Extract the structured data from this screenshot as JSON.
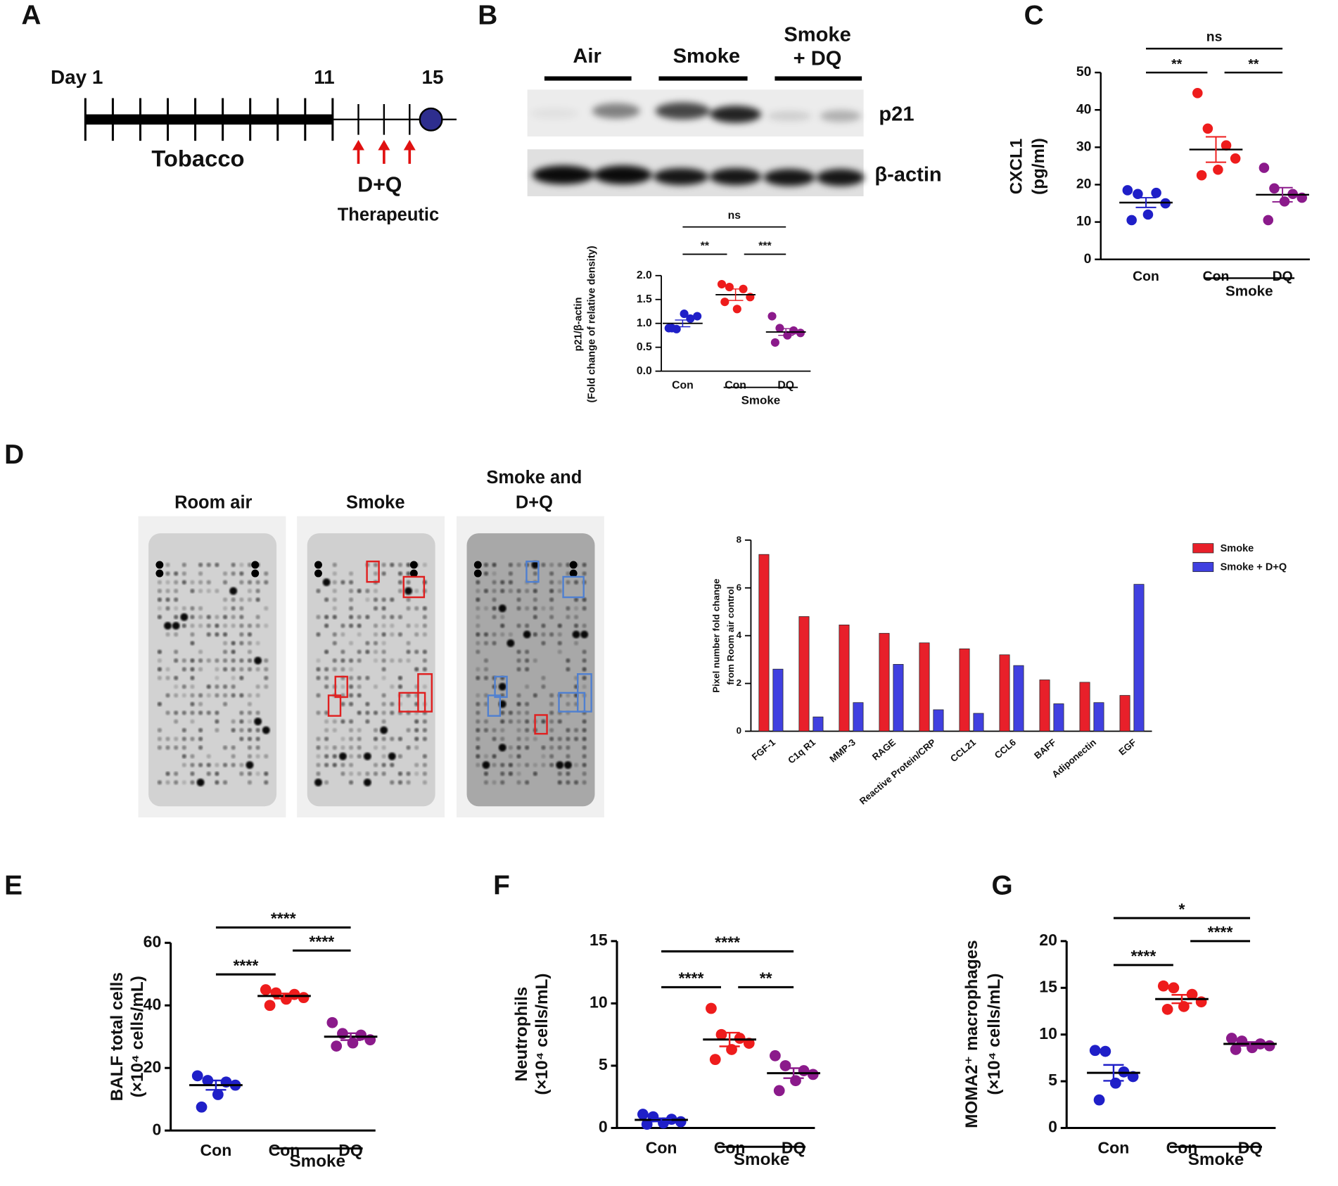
{
  "panel_labels": [
    "A",
    "B",
    "C",
    "D",
    "E",
    "F",
    "G"
  ],
  "timeline": {
    "start": "Day 1",
    "mid": "11",
    "end": "15",
    "exposure": "Tobacco",
    "treatment": "D+Q",
    "regimen": "Therapeutic"
  },
  "blot": {
    "groups": [
      [
        "Air"
      ],
      [
        "Smoke"
      ],
      [
        "Smoke",
        "+ DQ"
      ]
    ],
    "proteins": [
      "p21",
      "β-actin"
    ]
  },
  "array": {
    "conditions": [
      [
        "Room air"
      ],
      [
        "Smoke"
      ],
      [
        "Smoke and",
        "D+Q"
      ]
    ]
  },
  "chart_data": [
    {
      "type": "dot",
      "ylabel": [
        "p21/β-actin",
        "(Fold change of relative density)"
      ],
      "categories": [
        "Con",
        "Con",
        "DQ"
      ],
      "group_label": "Smoke",
      "ylim": [
        0,
        2
      ],
      "yticks": [
        {
          "value": 0,
          "label": "0.0"
        },
        {
          "value": 0.5,
          "label": "0.5"
        },
        {
          "value": 1,
          "label": "1.0"
        },
        {
          "value": 1.5,
          "label": "1.5"
        },
        {
          "value": 2,
          "label": "2.0"
        }
      ],
      "groups": [
        {
          "color": "#1f1fc8",
          "values": [
            0.9,
            0.88,
            1.1,
            1.15,
            1.2,
            0.9
          ],
          "mean": 1.0,
          "sem": 0.07
        },
        {
          "color": "#ee1c1c",
          "values": [
            1.82,
            1.76,
            1.72,
            1.55,
            1.3,
            1.45
          ],
          "mean": 1.6,
          "sem": 0.12
        },
        {
          "color": "#8b1a8b",
          "values": [
            1.15,
            0.9,
            0.85,
            0.8,
            0.75,
            0.6
          ],
          "mean": 0.82,
          "sem": 0.07
        }
      ],
      "comparisons": [
        {
          "label": "ns",
          "groups": [
            0,
            2
          ]
        },
        {
          "label": "**",
          "groups": [
            0,
            1
          ]
        },
        {
          "label": "***",
          "groups": [
            1,
            2
          ]
        }
      ]
    },
    {
      "type": "dot",
      "ylabel": [
        "CXCL1",
        "(pg/ml)"
      ],
      "categories": [
        "Con",
        "Con",
        "DQ"
      ],
      "group_label": "Smoke",
      "ylim": [
        0,
        50
      ],
      "yticks": [
        0,
        10,
        20,
        30,
        40,
        50
      ],
      "groups": [
        {
          "color": "#1f1fc8",
          "values": [
            18.5,
            17.5,
            17.8,
            15,
            12,
            10.5
          ],
          "mean": 15.2,
          "sem": 1.3
        },
        {
          "color": "#ee1c1c",
          "values": [
            44.5,
            35,
            30.5,
            27,
            24,
            22.5
          ],
          "mean": 29.4,
          "sem": 3.4
        },
        {
          "color": "#8b1a8b",
          "values": [
            24.5,
            19,
            17.5,
            16.5,
            15.5,
            10.5
          ],
          "mean": 17.3,
          "sem": 1.9
        }
      ],
      "comparisons": [
        {
          "label": "ns",
          "groups": [
            0,
            2
          ]
        },
        {
          "label": "**",
          "groups": [
            0,
            1
          ]
        },
        {
          "label": "**",
          "groups": [
            1,
            2
          ]
        }
      ]
    },
    {
      "type": "bar",
      "ylabel": [
        "Pixel number fold change",
        "from Room air control"
      ],
      "categories": [
        "FGF-1",
        "C1q R1",
        "MMP-3",
        "RAGE",
        "Reactive Protein/CRP",
        "CCL21",
        "CCL6",
        "BAFF",
        "Adiponectin",
        "EGF"
      ],
      "series": [
        {
          "name": "Smoke",
          "color": "#e8202a",
          "values": [
            7.4,
            4.8,
            4.45,
            4.1,
            3.7,
            3.45,
            3.2,
            2.15,
            2.05,
            1.5
          ]
        },
        {
          "name": "Smoke + D+Q",
          "color": "#4040e0",
          "values": [
            2.6,
            0.6,
            1.2,
            2.8,
            0.9,
            0.75,
            2.75,
            1.15,
            1.2,
            6.15
          ]
        }
      ],
      "ylim": [
        0,
        8
      ],
      "yticks": [
        0,
        2,
        4,
        6,
        8
      ],
      "legend": "upper right"
    },
    {
      "type": "dot",
      "ylabel": [
        "BALF total cells",
        "(×10⁴ cells/mL)"
      ],
      "categories": [
        "Con",
        "Con",
        "DQ"
      ],
      "group_label": "Smoke",
      "ylim": [
        0,
        60
      ],
      "yticks": [
        0,
        20,
        40,
        60
      ],
      "groups": [
        {
          "color": "#1f1fc8",
          "values": [
            17.5,
            16,
            15.5,
            14.5,
            11.5,
            7.5
          ],
          "mean": 14.5,
          "sem": 1.5
        },
        {
          "color": "#ee1c1c",
          "values": [
            45,
            44,
            43.5,
            42.5,
            42,
            40
          ],
          "mean": 43,
          "sem": 0.8
        },
        {
          "color": "#8b1a8b",
          "values": [
            34.5,
            31,
            30.5,
            29,
            28,
            27
          ],
          "mean": 30,
          "sem": 1.1
        }
      ],
      "comparisons": [
        {
          "label": "****",
          "groups": [
            0,
            2
          ]
        },
        {
          "label": "****",
          "groups": [
            0,
            1
          ]
        },
        {
          "label": "****",
          "groups": [
            1,
            2
          ]
        }
      ]
    },
    {
      "type": "dot",
      "ylabel": [
        "Neutrophils",
        "(×10⁴ cells/mL)"
      ],
      "categories": [
        "Con",
        "Con",
        "DQ"
      ],
      "group_label": "Smoke",
      "ylim": [
        0,
        15
      ],
      "yticks": [
        0,
        5,
        10,
        15
      ],
      "groups": [
        {
          "color": "#1f1fc8",
          "values": [
            1.1,
            0.9,
            0.7,
            0.5,
            0.4,
            0.3
          ],
          "mean": 0.65,
          "sem": 0.12
        },
        {
          "color": "#ee1c1c",
          "values": [
            9.6,
            7.5,
            7.2,
            6.8,
            6.3,
            5.5
          ],
          "mean": 7.1,
          "sem": 0.55
        },
        {
          "color": "#8b1a8b",
          "values": [
            5.8,
            5.0,
            4.6,
            4.3,
            3.8,
            3.0
          ],
          "mean": 4.4,
          "sem": 0.4
        }
      ],
      "comparisons": [
        {
          "label": "****",
          "groups": [
            0,
            2
          ]
        },
        {
          "label": "****",
          "groups": [
            0,
            1
          ]
        },
        {
          "label": "**",
          "groups": [
            1,
            2
          ]
        }
      ]
    },
    {
      "type": "dot",
      "ylabel": [
        "MOMA2⁺ macrophages",
        "(×10⁴ cells/mL)"
      ],
      "categories": [
        "Con",
        "Con",
        "DQ"
      ],
      "group_label": "Smoke",
      "ylim": [
        0,
        20
      ],
      "yticks": [
        0,
        5,
        10,
        15,
        20
      ],
      "groups": [
        {
          "color": "#1f1fc8",
          "values": [
            8.3,
            8.2,
            6.0,
            5.5,
            4.8,
            3.0
          ],
          "mean": 5.9,
          "sem": 0.85
        },
        {
          "color": "#ee1c1c",
          "values": [
            15.2,
            15,
            14.3,
            13.5,
            13,
            12.7
          ],
          "mean": 13.8,
          "sem": 0.45
        },
        {
          "color": "#8b1a8b",
          "values": [
            9.6,
            9.3,
            9.0,
            8.8,
            8.6,
            8.4
          ],
          "mean": 9,
          "sem": 0.2
        }
      ],
      "comparisons": [
        {
          "label": "*",
          "groups": [
            0,
            2
          ]
        },
        {
          "label": "****",
          "groups": [
            0,
            1
          ]
        },
        {
          "label": "****",
          "groups": [
            1,
            2
          ]
        }
      ]
    }
  ]
}
